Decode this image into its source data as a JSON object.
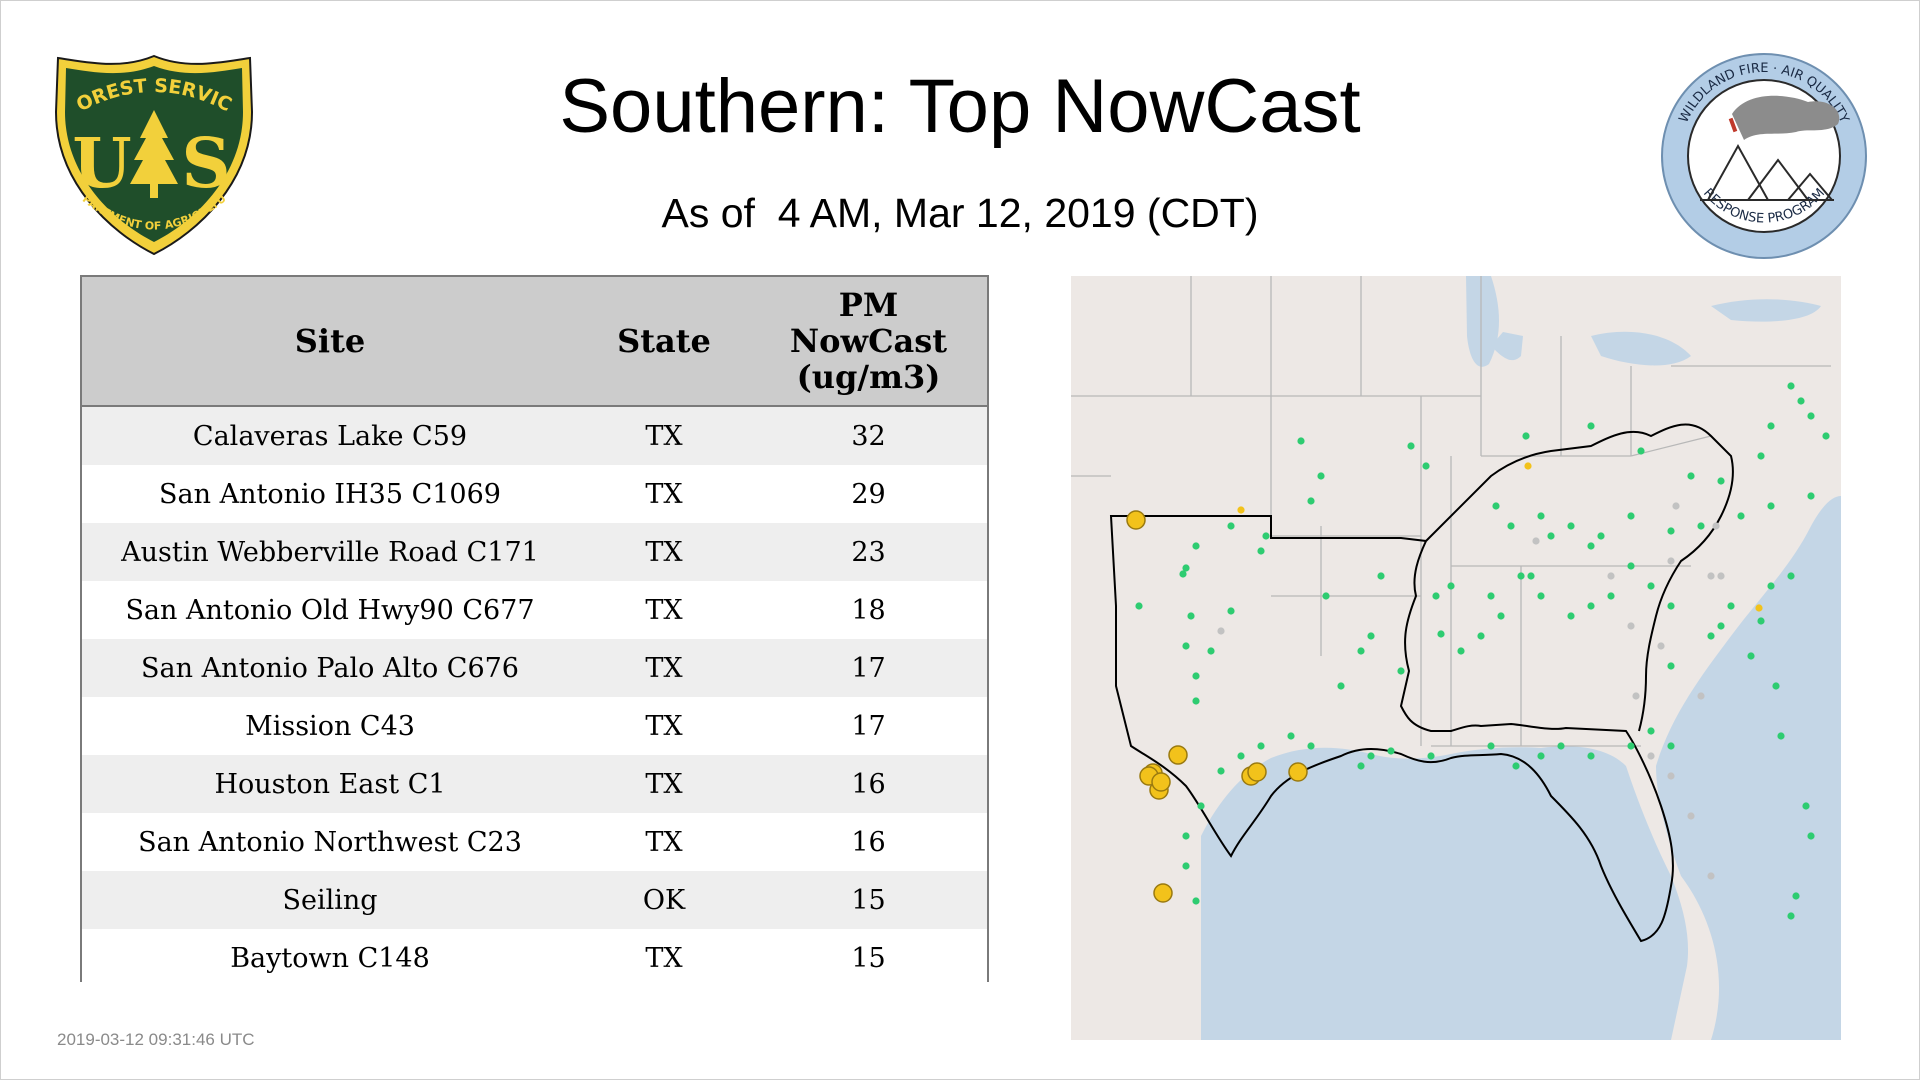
{
  "header": {
    "title": "Southern: Top NowCast",
    "subtitle": "As of  4 AM, Mar 12, 2019 (CDT)"
  },
  "logos": {
    "forest_service": {
      "icon": "forest-service-shield-icon",
      "top_text": "FOREST SERVICE",
      "left_letter": "U",
      "right_letter": "S",
      "bottom_text": "DEPARTMENT OF AGRICULTURE",
      "colors": {
        "green": "#1f4e2a",
        "gold": "#f2d03b"
      }
    },
    "wildland_fire": {
      "icon": "wildland-fire-air-quality-seal-icon",
      "top_text": "WILDLAND FIRE · AIR QUALITY",
      "bottom_text": "RESPONSE PROGRAM",
      "colors": {
        "ring": "#b3cde6",
        "smoke": "#8c8c8c"
      }
    }
  },
  "chart_data": {
    "type": "table",
    "columns": [
      "Site",
      "State",
      "PM NowCast (ug/m3)"
    ],
    "rows": [
      {
        "site": "Calaveras Lake C59",
        "state": "TX",
        "value": 32
      },
      {
        "site": "San Antonio IH35 C1069",
        "state": "TX",
        "value": 29
      },
      {
        "site": "Austin Webberville Road C171",
        "state": "TX",
        "value": 23
      },
      {
        "site": "San Antonio Old Hwy90 C677",
        "state": "TX",
        "value": 18
      },
      {
        "site": "San Antonio Palo Alto C676",
        "state": "TX",
        "value": 17
      },
      {
        "site": "Mission C43",
        "state": "TX",
        "value": 17
      },
      {
        "site": "Houston East C1",
        "state": "TX",
        "value": 16
      },
      {
        "site": "San Antonio Northwest C23",
        "state": "TX",
        "value": 16
      },
      {
        "site": "Seiling",
        "state": "OK",
        "value": 15
      },
      {
        "site": "Baytown C148",
        "state": "TX",
        "value": 15
      }
    ]
  },
  "map": {
    "colors": {
      "land": "#ede8e5",
      "water": "#c4d6e6",
      "border": "#b8b8b8",
      "region_outline": "#000000",
      "good": "#2ecc71",
      "moderate": "#f2c21b",
      "no_data": "#c2c2c2",
      "top_site": "#f2c21b",
      "top_site_edge": "#9a7a10"
    }
  },
  "footer": {
    "timestamp": "2019-03-12 09:31:46 UTC"
  }
}
